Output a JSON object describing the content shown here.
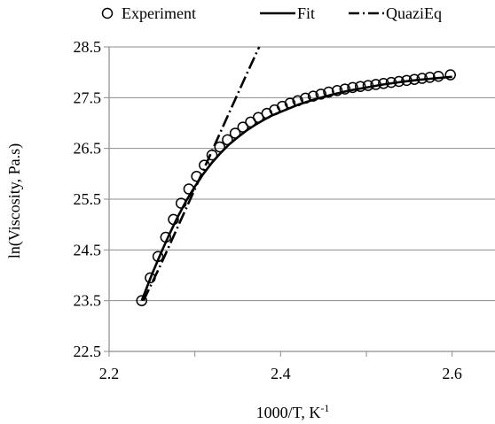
{
  "chart_data": {
    "type": "scatter",
    "title": "",
    "xlabel": "1000/T, K",
    "xlabel_sup": "-1",
    "ylabel": "ln(Viscosity,  Pa.s)",
    "xlim": [
      2.2,
      2.65
    ],
    "ylim": [
      22.5,
      28.5
    ],
    "xticks": [
      2.2,
      2.4,
      2.6
    ],
    "xtick_labels": [
      "2.2",
      "2.4",
      "2.6"
    ],
    "yticks": [
      22.5,
      23.5,
      24.5,
      25.5,
      26.5,
      27.5,
      28.5
    ],
    "ytick_labels": [
      "22.5",
      "23.5",
      "24.5",
      "25.5",
      "26.5",
      "27.5",
      "28.5"
    ],
    "grid": "horizontal",
    "legend_position": "top",
    "series": [
      {
        "name": "Experiment",
        "kind": "markers",
        "marker": "open-circle",
        "x": [
          2.238,
          2.248,
          2.257,
          2.266,
          2.275,
          2.284,
          2.293,
          2.302,
          2.311,
          2.32,
          2.329,
          2.338,
          2.347,
          2.356,
          2.365,
          2.374,
          2.384,
          2.393,
          2.402,
          2.411,
          2.42,
          2.429,
          2.438,
          2.447,
          2.456,
          2.466,
          2.475,
          2.484,
          2.493,
          2.502,
          2.511,
          2.52,
          2.529,
          2.538,
          2.547,
          2.556,
          2.565,
          2.574,
          2.584,
          2.598
        ],
        "y": [
          23.5,
          23.95,
          24.37,
          24.75,
          25.1,
          25.42,
          25.7,
          25.95,
          26.17,
          26.37,
          26.53,
          26.67,
          26.8,
          26.92,
          27.02,
          27.11,
          27.19,
          27.26,
          27.33,
          27.39,
          27.44,
          27.49,
          27.53,
          27.57,
          27.61,
          27.64,
          27.67,
          27.7,
          27.72,
          27.74,
          27.76,
          27.78,
          27.8,
          27.82,
          27.84,
          27.86,
          27.88,
          27.9,
          27.92,
          27.95
        ]
      },
      {
        "name": "Fit",
        "kind": "line",
        "style": "solid",
        "x": [
          2.238,
          2.25,
          2.26,
          2.27,
          2.28,
          2.29,
          2.3,
          2.31,
          2.32,
          2.33,
          2.34,
          2.35,
          2.36,
          2.37,
          2.38,
          2.39,
          2.4,
          2.42,
          2.44,
          2.46,
          2.48,
          2.5,
          2.52,
          2.54,
          2.56,
          2.58,
          2.6
        ],
        "y": [
          23.5,
          24.02,
          24.42,
          24.8,
          25.15,
          25.47,
          25.75,
          26.0,
          26.22,
          26.41,
          26.58,
          26.72,
          26.85,
          26.96,
          27.06,
          27.15,
          27.22,
          27.36,
          27.47,
          27.56,
          27.64,
          27.7,
          27.76,
          27.81,
          27.85,
          27.88,
          27.91
        ]
      },
      {
        "name": "QuaziEq",
        "kind": "line",
        "style": "dash-dot",
        "x": [
          2.24,
          2.26,
          2.28,
          2.3,
          2.32,
          2.34,
          2.36,
          2.375
        ],
        "y": [
          23.5,
          24.2,
          24.95,
          25.7,
          26.45,
          27.2,
          27.95,
          28.5
        ]
      }
    ]
  }
}
